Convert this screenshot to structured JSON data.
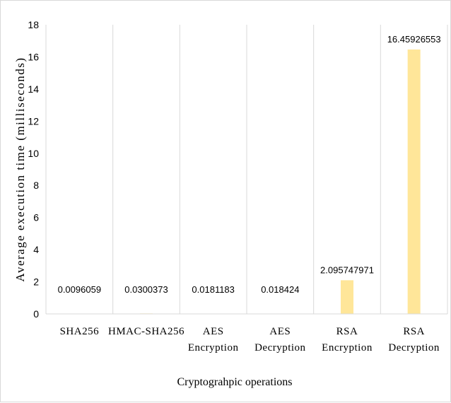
{
  "chart_data": {
    "type": "bar",
    "title": "",
    "xlabel": "Cryptograhpic operations",
    "ylabel": "Average execution time (milliseconds)",
    "ylim": [
      0,
      18
    ],
    "yticks": [
      0,
      2,
      4,
      6,
      8,
      10,
      12,
      14,
      16,
      18
    ],
    "grid": "vertical lines between categories",
    "legend": "none",
    "bar_color": "#ffe699",
    "categories": [
      [
        "SHA256"
      ],
      [
        "HMAC-SHA256"
      ],
      [
        "AES",
        "Encryption"
      ],
      [
        "AES",
        "Decryption"
      ],
      [
        "RSA",
        "Encryption"
      ],
      [
        "RSA",
        "Decryption"
      ]
    ],
    "values": [
      0.0096059,
      0.0300373,
      0.0181183,
      0.018424,
      2.095747971,
      16.45926553
    ],
    "value_labels": [
      "0.0096059",
      "0.0300373",
      "0.0181183",
      "0.018424",
      "2.095747971",
      "16.45926553"
    ]
  }
}
